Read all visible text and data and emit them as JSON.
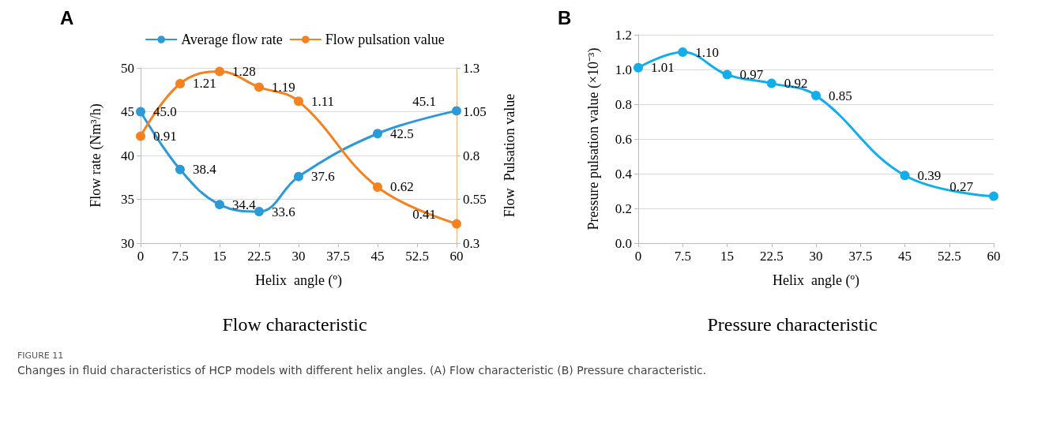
{
  "chart_data": [
    {
      "type": "line",
      "title": "Flow characteristic",
      "xlabel": "Helix  angle (º)",
      "ylabel": "Flow rate (Nm³/h)",
      "y2label": "Flow  Pulsation value",
      "annotations": [
        "A",
        "FIGURE 11",
        "Changes in fluid characteristics of HCP models with different helix angles. (A) Flow characteristic (B) Pressure characteristic."
      ],
      "x": [
        0,
        7.5,
        15,
        22.5,
        30,
        45,
        60
      ],
      "series": [
        {
          "name": "Average flow rate",
          "color": "#2b9ad6",
          "values": [
            45.0,
            38.4,
            34.4,
            33.6,
            37.6,
            42.5,
            45.1
          ],
          "value_labels": [
            "45.0",
            "38.4",
            "34.4",
            "33.6",
            "37.6",
            "42.5",
            "45.1"
          ]
        },
        {
          "name": "Flow pulsation value",
          "color": "#f5821f",
          "axis": "y2",
          "values": [
            0.91,
            1.21,
            1.28,
            1.19,
            1.11,
            0.62,
            0.41
          ],
          "value_labels": [
            "0.91",
            "1.21",
            "1.28",
            "1.19",
            "1.11",
            "0.62",
            "0.41"
          ]
        }
      ],
      "xlim": [
        0,
        60
      ],
      "xticks": [
        0,
        7.5,
        15,
        22.5,
        30,
        37.5,
        45,
        52.5,
        60
      ],
      "ylim": [
        30,
        50
      ],
      "yticks": [
        30,
        35,
        40,
        45,
        50
      ],
      "y2lim": [
        0.3,
        1.3
      ],
      "y2ticks": [
        0.3,
        0.55,
        0.8,
        1.05,
        1.3
      ],
      "grid": "y",
      "legend": "top",
      "marker": "circle",
      "line_style": "solid"
    },
    {
      "type": "line",
      "title": "Pressure characteristic",
      "xlabel": "Helix  angle (º)",
      "ylabel": "Pressure pulsation value (×10⁻³)",
      "annotations": [
        "B"
      ],
      "x": [
        0,
        7.5,
        15,
        22.5,
        30,
        45,
        60
      ],
      "series": [
        {
          "color": "#12aeea",
          "values": [
            1.01,
            1.1,
            0.97,
            0.92,
            0.85,
            0.39,
            0.27
          ],
          "value_labels": [
            "1.01",
            "1.10",
            "0.97",
            "0.92",
            "0.85",
            "0.39",
            "0.27"
          ]
        }
      ],
      "xlim": [
        0,
        60
      ],
      "xticks": [
        0,
        7.5,
        15,
        22.5,
        30,
        37.5,
        45,
        52.5,
        60
      ],
      "ylim": [
        0,
        1.2
      ],
      "yticks": [
        {
          "value": 0,
          "label": "0.0"
        },
        0.2,
        0.4,
        0.6,
        0.8,
        {
          "value": 1,
          "label": "1.0"
        },
        1.2
      ],
      "grid": "y",
      "legend": false,
      "marker": "circle",
      "line_style": "solid"
    }
  ]
}
